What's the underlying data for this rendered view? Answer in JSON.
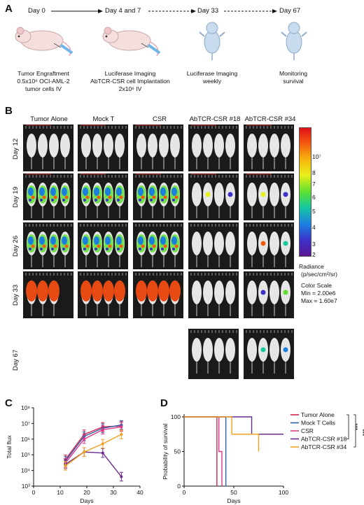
{
  "panel_a": {
    "letter": "A",
    "steps": [
      "Day 0",
      "Day 4 and 7",
      "Day 33",
      "Day 67"
    ],
    "captions": [
      [
        "Tumor Engraftment",
        "0.5x10⁶ OCI-AML-2",
        "tumor cells IV"
      ],
      [
        "Luciferase Imaging",
        "AbTCR-CSR cell Implantation",
        "2x10⁶ IV"
      ],
      [
        "Luciferase Imaging",
        "weekly"
      ],
      [
        "Monitoring",
        "survival"
      ]
    ]
  },
  "panel_b": {
    "letter": "B",
    "columns": [
      "Tumor Alone",
      "Mock T",
      "CSR",
      "AbTCR-CSR #18",
      "AbTCR-CSR #34"
    ],
    "rows": [
      "Day 12",
      "Day 19",
      "Day 26",
      "Day 33",
      "Day 67"
    ],
    "colorbar_ticks": [
      "10⁷",
      "8",
      "7",
      "6",
      "5",
      "4",
      "3",
      "2"
    ],
    "radiance_lines": [
      "Radiance",
      "(p/sec/cm²/sr)",
      "Color Scale",
      "Min = 2.00e6",
      "Max = 1.60e7"
    ]
  },
  "chart_data": [
    {
      "panel": "C",
      "type": "line",
      "ylabel": "Total flux",
      "xlabel": "Days",
      "yscale": "log",
      "ylim": [
        1000,
        100000000
      ],
      "xlim": [
        0,
        40
      ],
      "xticks": [
        "0",
        "10",
        "20",
        "30",
        "40"
      ],
      "yticks": [
        "10³",
        "10⁴",
        "10⁵",
        "10⁶",
        "10⁷",
        "10⁸"
      ],
      "x": [
        12,
        19,
        26,
        33
      ],
      "series": [
        {
          "name": "Tumor Alone",
          "color": "#d6234a",
          "values": [
            50000,
            2000000,
            6000000,
            7000000
          ]
        },
        {
          "name": "Mock T Cells",
          "color": "#2e5fa6",
          "values": [
            40000,
            1500000,
            5000000,
            8000000
          ]
        },
        {
          "name": "CSR",
          "color": "#e0378c",
          "values": [
            30000,
            1000000,
            4000000,
            6000000
          ]
        },
        {
          "name": "AbTCR-CSR #18",
          "color": "#6a2c8e",
          "values": [
            25000,
            150000,
            130000,
            4000
          ]
        },
        {
          "name": "AbTCR-CSR #34",
          "color": "#f0a020",
          "values": [
            20000,
            150000,
            500000,
            2000000
          ]
        }
      ]
    },
    {
      "panel": "D",
      "type": "line",
      "ylabel": "Probability of survival",
      "xlabel": "Days",
      "xlim": [
        0,
        100
      ],
      "ylim": [
        0,
        100
      ],
      "xticks": [
        "0",
        "50",
        "100"
      ],
      "yticks": [
        "0",
        "50",
        "100"
      ],
      "series": [
        {
          "name": "Tumor Alone",
          "color": "#d6234a",
          "steps": [
            [
              0,
              100
            ],
            [
              33,
              100
            ],
            [
              33,
              0
            ]
          ]
        },
        {
          "name": "Mock T Cells",
          "color": "#2e5fa6",
          "steps": [
            [
              0,
              100
            ],
            [
              42,
              100
            ],
            [
              42,
              0
            ]
          ]
        },
        {
          "name": "CSR",
          "color": "#e0378c",
          "steps": [
            [
              0,
              100
            ],
            [
              35,
              100
            ],
            [
              35,
              50
            ],
            [
              38,
              50
            ],
            [
              38,
              0
            ]
          ]
        },
        {
          "name": "AbTCR-CSR #18",
          "color": "#6a2c8e",
          "steps": [
            [
              0,
              100
            ],
            [
              68,
              100
            ],
            [
              68,
              75
            ],
            [
              100,
              75
            ]
          ]
        },
        {
          "name": "AbTCR-CSR #34",
          "color": "#f0a020",
          "steps": [
            [
              0,
              100
            ],
            [
              48,
              100
            ],
            [
              48,
              75
            ],
            [
              75,
              75
            ],
            [
              75,
              50
            ]
          ]
        }
      ],
      "significance": [
        "***",
        "***"
      ]
    }
  ]
}
